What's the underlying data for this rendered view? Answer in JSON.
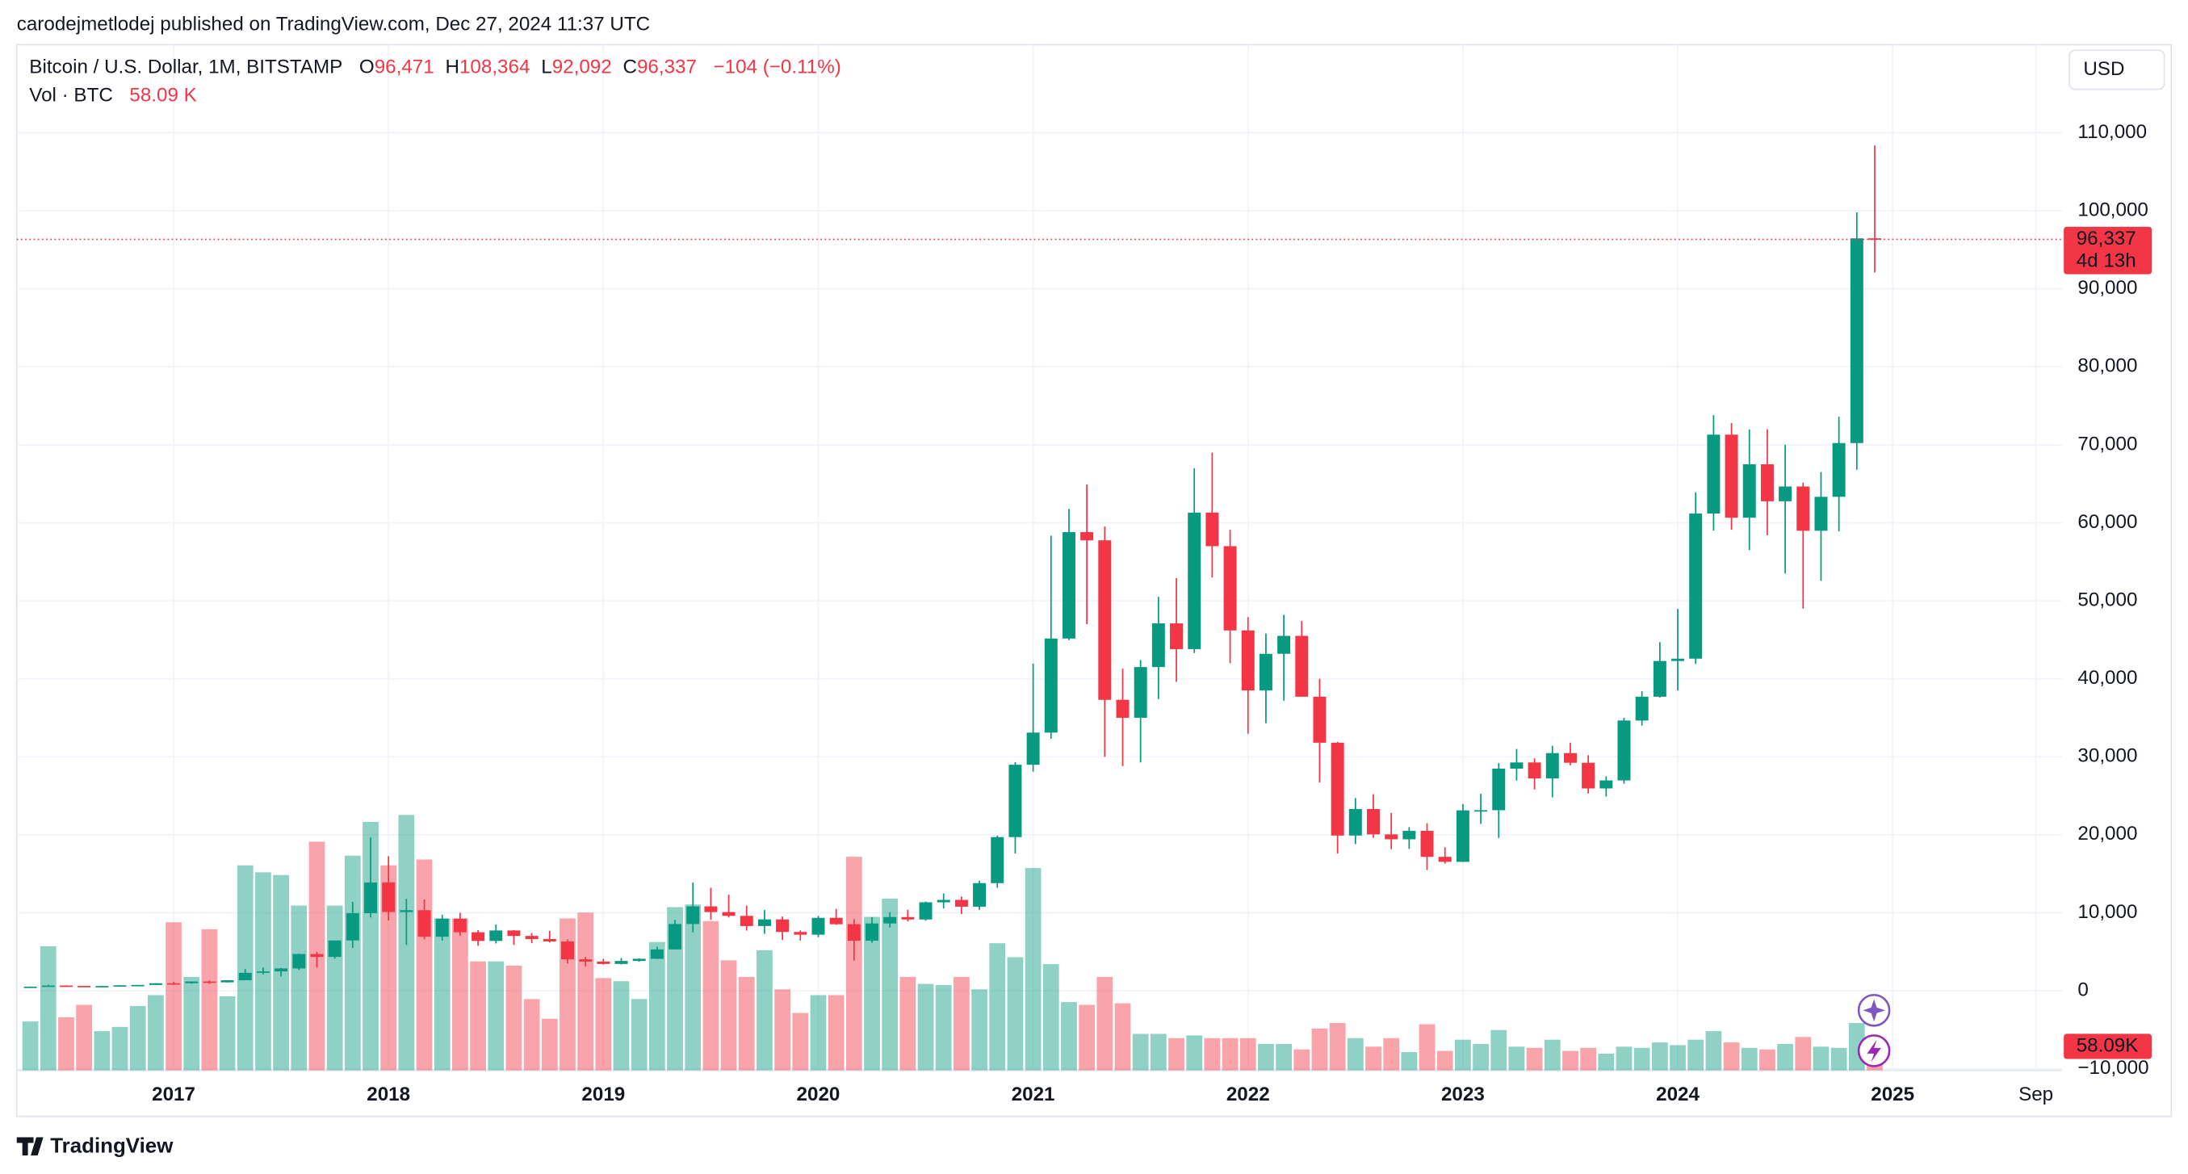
{
  "header": {
    "publisher": "carodejmetlodej published on TradingView.com, Dec 27, 2024 11:37 UTC",
    "currency": "USD",
    "footer": "TradingView"
  },
  "chart_data": {
    "type": "candlestick",
    "title": "Bitcoin / U.S. Dollar, 1M, BITSTAMP",
    "ohlc_header": [
      {
        "key": "O",
        "value": "96,471"
      },
      {
        "key": "H",
        "value": "108,364"
      },
      {
        "key": "L",
        "value": "92,092"
      },
      {
        "key": "C",
        "value": "96,337"
      }
    ],
    "change": "−104 (−0.11%)",
    "last_price": {
      "label": "96,337",
      "countdown": "4d 13h"
    },
    "up_color": "#089981",
    "down_color": "#f23645",
    "grid": true,
    "x": [
      2016.3333,
      2016.4167,
      2016.5,
      2016.5833,
      2016.6667,
      2016.75,
      2016.8333,
      2016.9167,
      2017,
      2017.0833,
      2017.1667,
      2017.25,
      2017.3333,
      2017.4167,
      2017.5,
      2017.5833,
      2017.6667,
      2017.75,
      2017.8333,
      2017.9167,
      2018,
      2018.0833,
      2018.1667,
      2018.25,
      2018.3333,
      2018.4167,
      2018.5,
      2018.5833,
      2018.6667,
      2018.75,
      2018.8333,
      2018.9167,
      2019,
      2019.0833,
      2019.1667,
      2019.25,
      2019.3333,
      2019.4167,
      2019.5,
      2019.5833,
      2019.6667,
      2019.75,
      2019.8333,
      2019.9167,
      2020,
      2020.0833,
      2020.1667,
      2020.25,
      2020.3333,
      2020.4167,
      2020.5,
      2020.5833,
      2020.6667,
      2020.75,
      2020.8333,
      2020.9167,
      2021,
      2021.0833,
      2021.1667,
      2021.25,
      2021.3333,
      2021.4167,
      2021.5,
      2021.5833,
      2021.6667,
      2021.75,
      2021.8333,
      2021.9167,
      2022,
      2022.0833,
      2022.1667,
      2022.25,
      2022.3333,
      2022.4167,
      2022.5,
      2022.5833,
      2022.6667,
      2022.75,
      2022.8333,
      2022.9167,
      2023,
      2023.0833,
      2023.1667,
      2023.25,
      2023.3333,
      2023.4167,
      2023.5,
      2023.5833,
      2023.6667,
      2023.75,
      2023.8333,
      2023.9167,
      2024,
      2024.0833,
      2024.1667,
      2024.25,
      2024.3333,
      2024.4167,
      2024.5,
      2024.5833,
      2024.6667,
      2024.75,
      2024.8333,
      2024.9167
    ],
    "open": [
      448,
      531,
      670,
      621,
      573,
      608,
      700,
      745,
      964,
      966,
      1190,
      1080,
      1348,
      2300,
      2480,
      2860,
      4710,
      4340,
      6450,
      9950,
      13880,
      10100,
      10330,
      6930,
      9240,
      7500,
      6390,
      7730,
      7030,
      6630,
      6320,
      4030,
      3740,
      3440,
      3820,
      4100,
      5300,
      8560,
      10820,
      10090,
      9600,
      8300,
      9150,
      7540,
      7190,
      9350,
      8530,
      6420,
      8630,
      9450,
      9140,
      11340,
      11650,
      10780,
      13800,
      19700,
      28980,
      33100,
      45160,
      58800,
      57750,
      37300,
      35000,
      41500,
      47100,
      43800,
      61300,
      57000,
      46200,
      38500,
      43200,
      45500,
      37700,
      31800,
      19900,
      23300,
      20050,
      19420,
      20500,
      17170,
      16530,
      23130,
      23150,
      28480,
      29270,
      27220,
      30470,
      29230,
      25940,
      26970,
      34650,
      37700,
      42280,
      42580,
      61180,
      71300,
      60650,
      67500,
      62760,
      64650,
      58980,
      63330,
      70220,
      96471
    ],
    "high": [
      550,
      780,
      703,
      626,
      628,
      720,
      755,
      980,
      1150,
      1200,
      1330,
      1350,
      2790,
      2980,
      2930,
      4750,
      4980,
      6450,
      11400,
      19666,
      17250,
      11780,
      11700,
      9750,
      9990,
      7770,
      8500,
      7770,
      7400,
      7680,
      6600,
      4340,
      4110,
      4200,
      4140,
      5640,
      9080,
      13880,
      13200,
      12330,
      10920,
      10350,
      9520,
      7740,
      9580,
      10500,
      9180,
      9460,
      10080,
      10390,
      11440,
      12480,
      12080,
      14100,
      19900,
      29300,
      41950,
      58350,
      61780,
      64900,
      59500,
      41300,
      42400,
      50500,
      52900,
      67000,
      69000,
      59100,
      47900,
      45800,
      48200,
      47400,
      40000,
      31900,
      24700,
      25200,
      22800,
      20980,
      21480,
      18400,
      23950,
      25250,
      29180,
      31000,
      29800,
      31400,
      31800,
      30200,
      27490,
      35000,
      38400,
      44700,
      48950,
      63900,
      73800,
      72800,
      71950,
      72000,
      70000,
      65150,
      66500,
      73600,
      99800,
      108364
    ],
    "low": [
      436,
      520,
      604,
      470,
      566,
      606,
      681,
      740,
      750,
      915,
      890,
      1060,
      1347,
      2100,
      1830,
      2670,
      2970,
      4110,
      5500,
      9400,
      9000,
      5870,
      6600,
      6430,
      7030,
      5770,
      6070,
      5880,
      6100,
      6200,
      3480,
      3120,
      3350,
      3370,
      3730,
      4070,
      5280,
      7500,
      9100,
      9400,
      7710,
      7300,
      6520,
      6430,
      6870,
      8460,
      3850,
      6160,
      8110,
      8900,
      8980,
      10550,
      9840,
      10380,
      13200,
      17600,
      28100,
      32300,
      44950,
      47000,
      30000,
      28800,
      29280,
      37400,
      39600,
      43300,
      53000,
      42000,
      32950,
      34300,
      37200,
      37700,
      26700,
      17600,
      18800,
      19600,
      18150,
      18200,
      15480,
      16300,
      16500,
      21400,
      19600,
      26950,
      25800,
      24800,
      28900,
      25300,
      24900,
      26550,
      34000,
      37600,
      38500,
      41900,
      59000,
      59100,
      56500,
      58400,
      53500,
      49000,
      52550,
      58900,
      66800,
      92092
    ],
    "close": [
      531,
      670,
      621,
      573,
      608,
      700,
      745,
      964,
      960,
      1190,
      1080,
      1348,
      2300,
      2480,
      2860,
      4710,
      4340,
      6450,
      9950,
      13880,
      10100,
      10330,
      6930,
      9240,
      7500,
      6390,
      7730,
      7030,
      6630,
      6320,
      4030,
      3740,
      3440,
      3820,
      4100,
      5300,
      8560,
      10820,
      10090,
      9600,
      8300,
      9150,
      7540,
      7190,
      9350,
      8530,
      6420,
      8630,
      9450,
      9140,
      11340,
      11650,
      10780,
      13800,
      19700,
      28980,
      33100,
      45160,
      58800,
      57750,
      37300,
      35000,
      41500,
      47100,
      43800,
      61300,
      57000,
      46200,
      38500,
      43200,
      45500,
      37700,
      31800,
      19900,
      23300,
      20050,
      19420,
      20500,
      17170,
      16530,
      23130,
      23150,
      28480,
      29270,
      27220,
      30470,
      29230,
      25940,
      26970,
      34650,
      37700,
      42280,
      42580,
      61180,
      71300,
      60650,
      67500,
      62760,
      64650,
      58980,
      63330,
      70220,
      96470,
      96337
    ],
    "volume": {
      "name": "Vol · BTC",
      "header_label": "58.09 K",
      "last_label": "58.09K",
      "values": [
        126,
        320,
        137,
        169,
        101,
        112,
        166,
        194,
        382,
        241,
        364,
        191,
        529,
        511,
        504,
        425,
        590,
        425,
        554,
        641,
        529,
        659,
        544,
        392,
        392,
        281,
        281,
        270,
        184,
        133,
        392,
        407,
        238,
        230,
        184,
        331,
        421,
        428,
        385,
        284,
        241,
        310,
        209,
        148,
        194,
        194,
        551,
        396,
        443,
        241,
        223,
        220,
        241,
        209,
        328,
        292,
        522,
        274,
        176,
        169,
        241,
        173,
        94,
        94,
        83,
        90,
        83,
        83,
        83,
        68,
        68,
        54,
        108,
        122,
        83,
        61,
        83,
        47,
        119,
        50,
        79,
        68,
        104,
        61,
        58,
        79,
        50,
        58,
        43,
        61,
        58,
        72,
        65,
        79,
        101,
        72,
        58,
        54,
        68,
        86,
        61,
        58,
        122,
        58.09
      ]
    },
    "xlim": [
      2016.27,
      2025.79
    ],
    "xticks": [
      2017,
      2018,
      2019,
      2020,
      2021,
      2022,
      2023,
      2024,
      2025,
      {
        "value": 2025.6667,
        "label": "Sep"
      }
    ],
    "ylim": [
      -10200,
      121300
    ],
    "yticks": [
      {
        "value": -10000,
        "label": "−10,000"
      },
      0,
      {
        "value": 10000,
        "label": "10,000"
      },
      {
        "value": 20000,
        "label": "20,000"
      },
      {
        "value": 30000,
        "label": "30,000"
      },
      {
        "value": 40000,
        "label": "40,000"
      },
      {
        "value": 50000,
        "label": "50,000"
      },
      {
        "value": 60000,
        "label": "60,000"
      },
      {
        "value": 70000,
        "label": "70,000"
      },
      {
        "value": 80000,
        "label": "80,000"
      },
      {
        "value": 90000,
        "label": "90,000"
      },
      {
        "value": 100000,
        "label": "100,000"
      },
      {
        "value": 110000,
        "label": "110,000"
      }
    ]
  }
}
